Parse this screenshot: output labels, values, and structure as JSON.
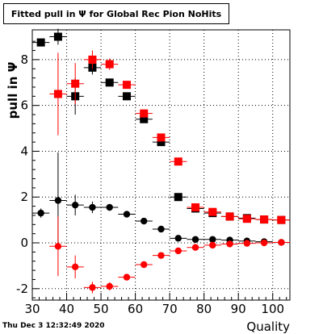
{
  "timestamp": "Thu Dec  3 12:32:49 2020",
  "chart_data": {
    "type": "scatter",
    "title": "Fitted pull in  Ψ  for Global Rec Pion NoHits",
    "xlabel": "Quality",
    "ylabel": "pull in  Ψ",
    "xlim": [
      30,
      105
    ],
    "ylim": [
      -2.5,
      9.3
    ],
    "xticks": [
      30,
      40,
      50,
      60,
      70,
      80,
      90,
      100
    ],
    "yticks": [
      -2,
      0,
      2,
      4,
      6,
      8
    ],
    "grid": true,
    "legend": "none",
    "x_error": 2.5,
    "series": [
      {
        "marker": "square",
        "color": "#000000",
        "x": [
          32.5,
          37.5,
          42.5,
          47.5,
          52.5,
          57.5,
          62.5,
          67.5,
          72.5,
          77.5,
          82.5,
          87.5,
          92.5,
          97.5,
          102.5
        ],
        "y": [
          8.75,
          9.0,
          6.4,
          7.65,
          7.0,
          6.4,
          5.4,
          4.4,
          2.0,
          1.5,
          1.3,
          1.15,
          1.08,
          1.02,
          1.0
        ],
        "yerr": [
          0.15,
          0.35,
          0.8,
          0.3,
          0.15,
          0.12,
          0.1,
          0.08,
          0.06,
          0.05,
          0.05,
          0.05,
          0.05,
          0.05,
          0.05
        ]
      },
      {
        "marker": "square",
        "color": "#ff0000",
        "x": [
          37.5,
          42.5,
          47.5,
          52.5,
          57.5,
          62.5,
          67.5,
          72.5,
          77.5,
          82.5,
          87.5,
          92.5,
          97.5,
          102.5
        ],
        "y": [
          6.5,
          6.95,
          8.0,
          7.8,
          6.9,
          5.65,
          4.6,
          3.55,
          1.55,
          1.35,
          1.15,
          1.05,
          1.02,
          1.0
        ],
        "yerr": [
          1.8,
          0.9,
          0.4,
          0.25,
          0.15,
          0.12,
          0.1,
          0.08,
          0.06,
          0.05,
          0.05,
          0.05,
          0.05,
          0.05
        ]
      },
      {
        "marker": "circle",
        "color": "#000000",
        "x": [
          32.5,
          37.5,
          42.5,
          47.5,
          52.5,
          57.5,
          62.5,
          67.5,
          72.5,
          77.5,
          82.5,
          87.5,
          92.5,
          97.5,
          102.5
        ],
        "y": [
          1.3,
          1.85,
          1.65,
          1.55,
          1.55,
          1.25,
          0.95,
          0.6,
          0.2,
          0.15,
          0.15,
          0.12,
          0.08,
          0.05,
          0.02
        ],
        "yerr": [
          0.2,
          2.1,
          0.45,
          0.25,
          0.15,
          0.1,
          0.08,
          0.07,
          0.06,
          0.05,
          0.05,
          0.05,
          0.05,
          0.05,
          0.05
        ]
      },
      {
        "marker": "circle",
        "color": "#ff0000",
        "x": [
          37.5,
          42.5,
          47.5,
          52.5,
          57.5,
          62.5,
          67.5,
          72.5,
          77.5,
          82.5,
          87.5,
          92.5,
          97.5,
          102.5
        ],
        "y": [
          -0.15,
          -1.05,
          -1.95,
          -1.9,
          -1.5,
          -0.95,
          -0.55,
          -0.35,
          -0.2,
          -0.1,
          -0.05,
          -0.02,
          0.0,
          0.02
        ],
        "yerr": [
          1.3,
          0.5,
          0.25,
          0.18,
          0.12,
          0.1,
          0.08,
          0.06,
          0.05,
          0.05,
          0.05,
          0.05,
          0.05,
          0.05
        ]
      }
    ]
  }
}
